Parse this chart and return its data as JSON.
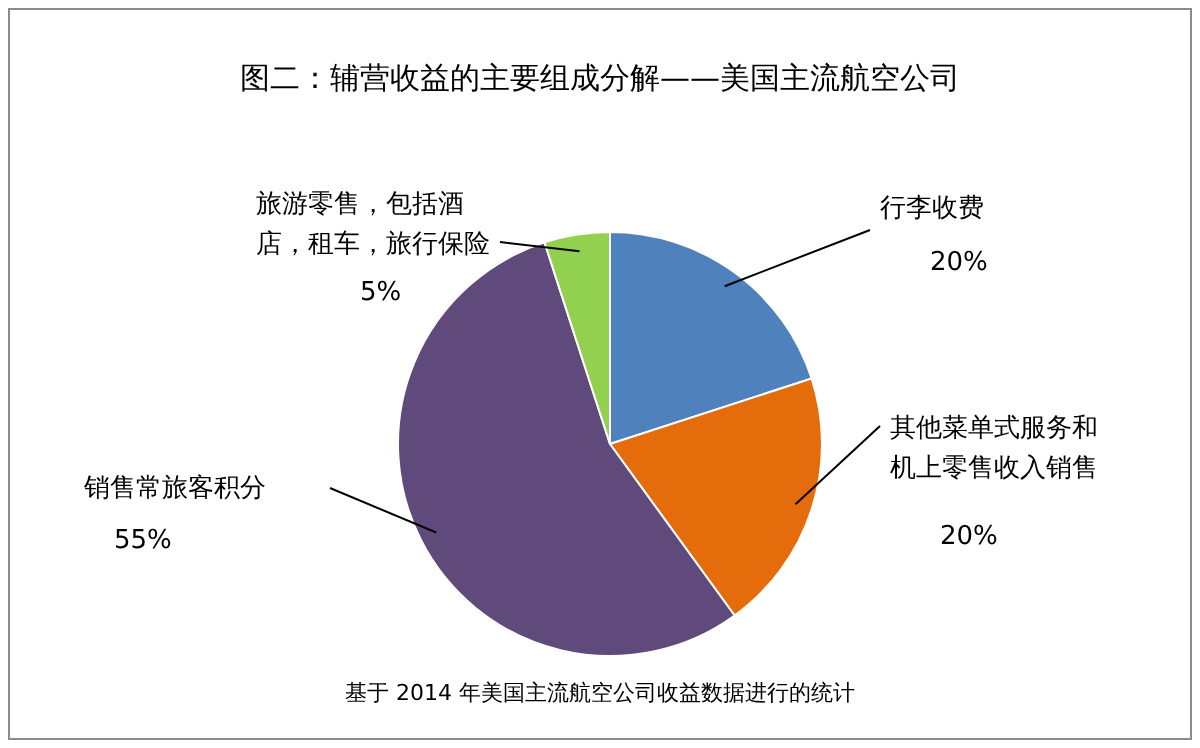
{
  "chart_data": {
    "type": "pie",
    "title": "图二：辅营收益的主要组成分解——美国主流航空公司",
    "categories": [
      "行李收费",
      "其他菜单式服务和机上零售收入销售",
      "销售常旅客积分",
      "旅游零售，包括酒店，租车，旅行保险"
    ],
    "values": [
      20,
      20,
      55,
      5
    ],
    "value_labels": [
      "20%",
      "20%",
      "55%",
      "5%"
    ],
    "colors": [
      "#4f81bd",
      "#e46c0a",
      "#604a7b",
      "#92d050"
    ],
    "annotations": [
      "基于 2014 年美国主流航空公司收益数据进行的统计"
    ]
  }
}
